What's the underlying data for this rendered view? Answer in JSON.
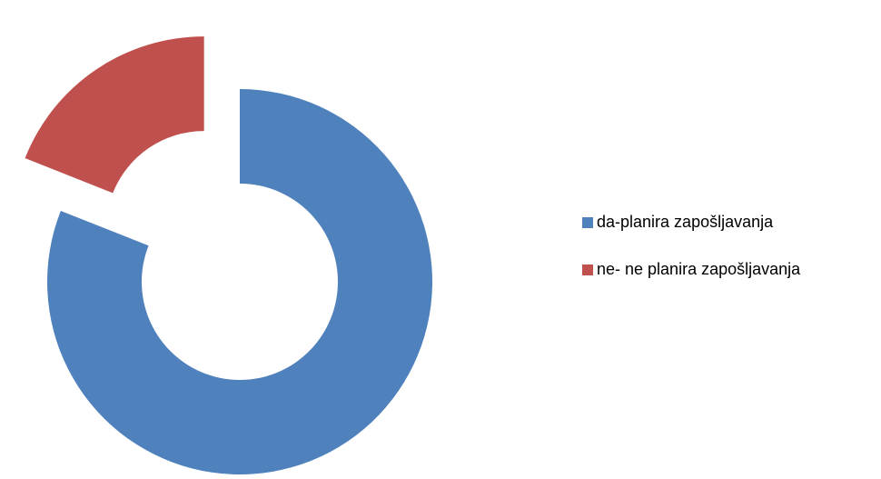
{
  "chart_data": {
    "type": "pie",
    "variant": "exploded-doughnut",
    "title": "",
    "categories": [
      "da-planira zapošljavanja",
      "ne- ne planira zapošljavanja"
    ],
    "values": [
      81,
      19
    ],
    "colors": [
      "#4F81BD",
      "#C0504D"
    ],
    "legend": "right"
  }
}
